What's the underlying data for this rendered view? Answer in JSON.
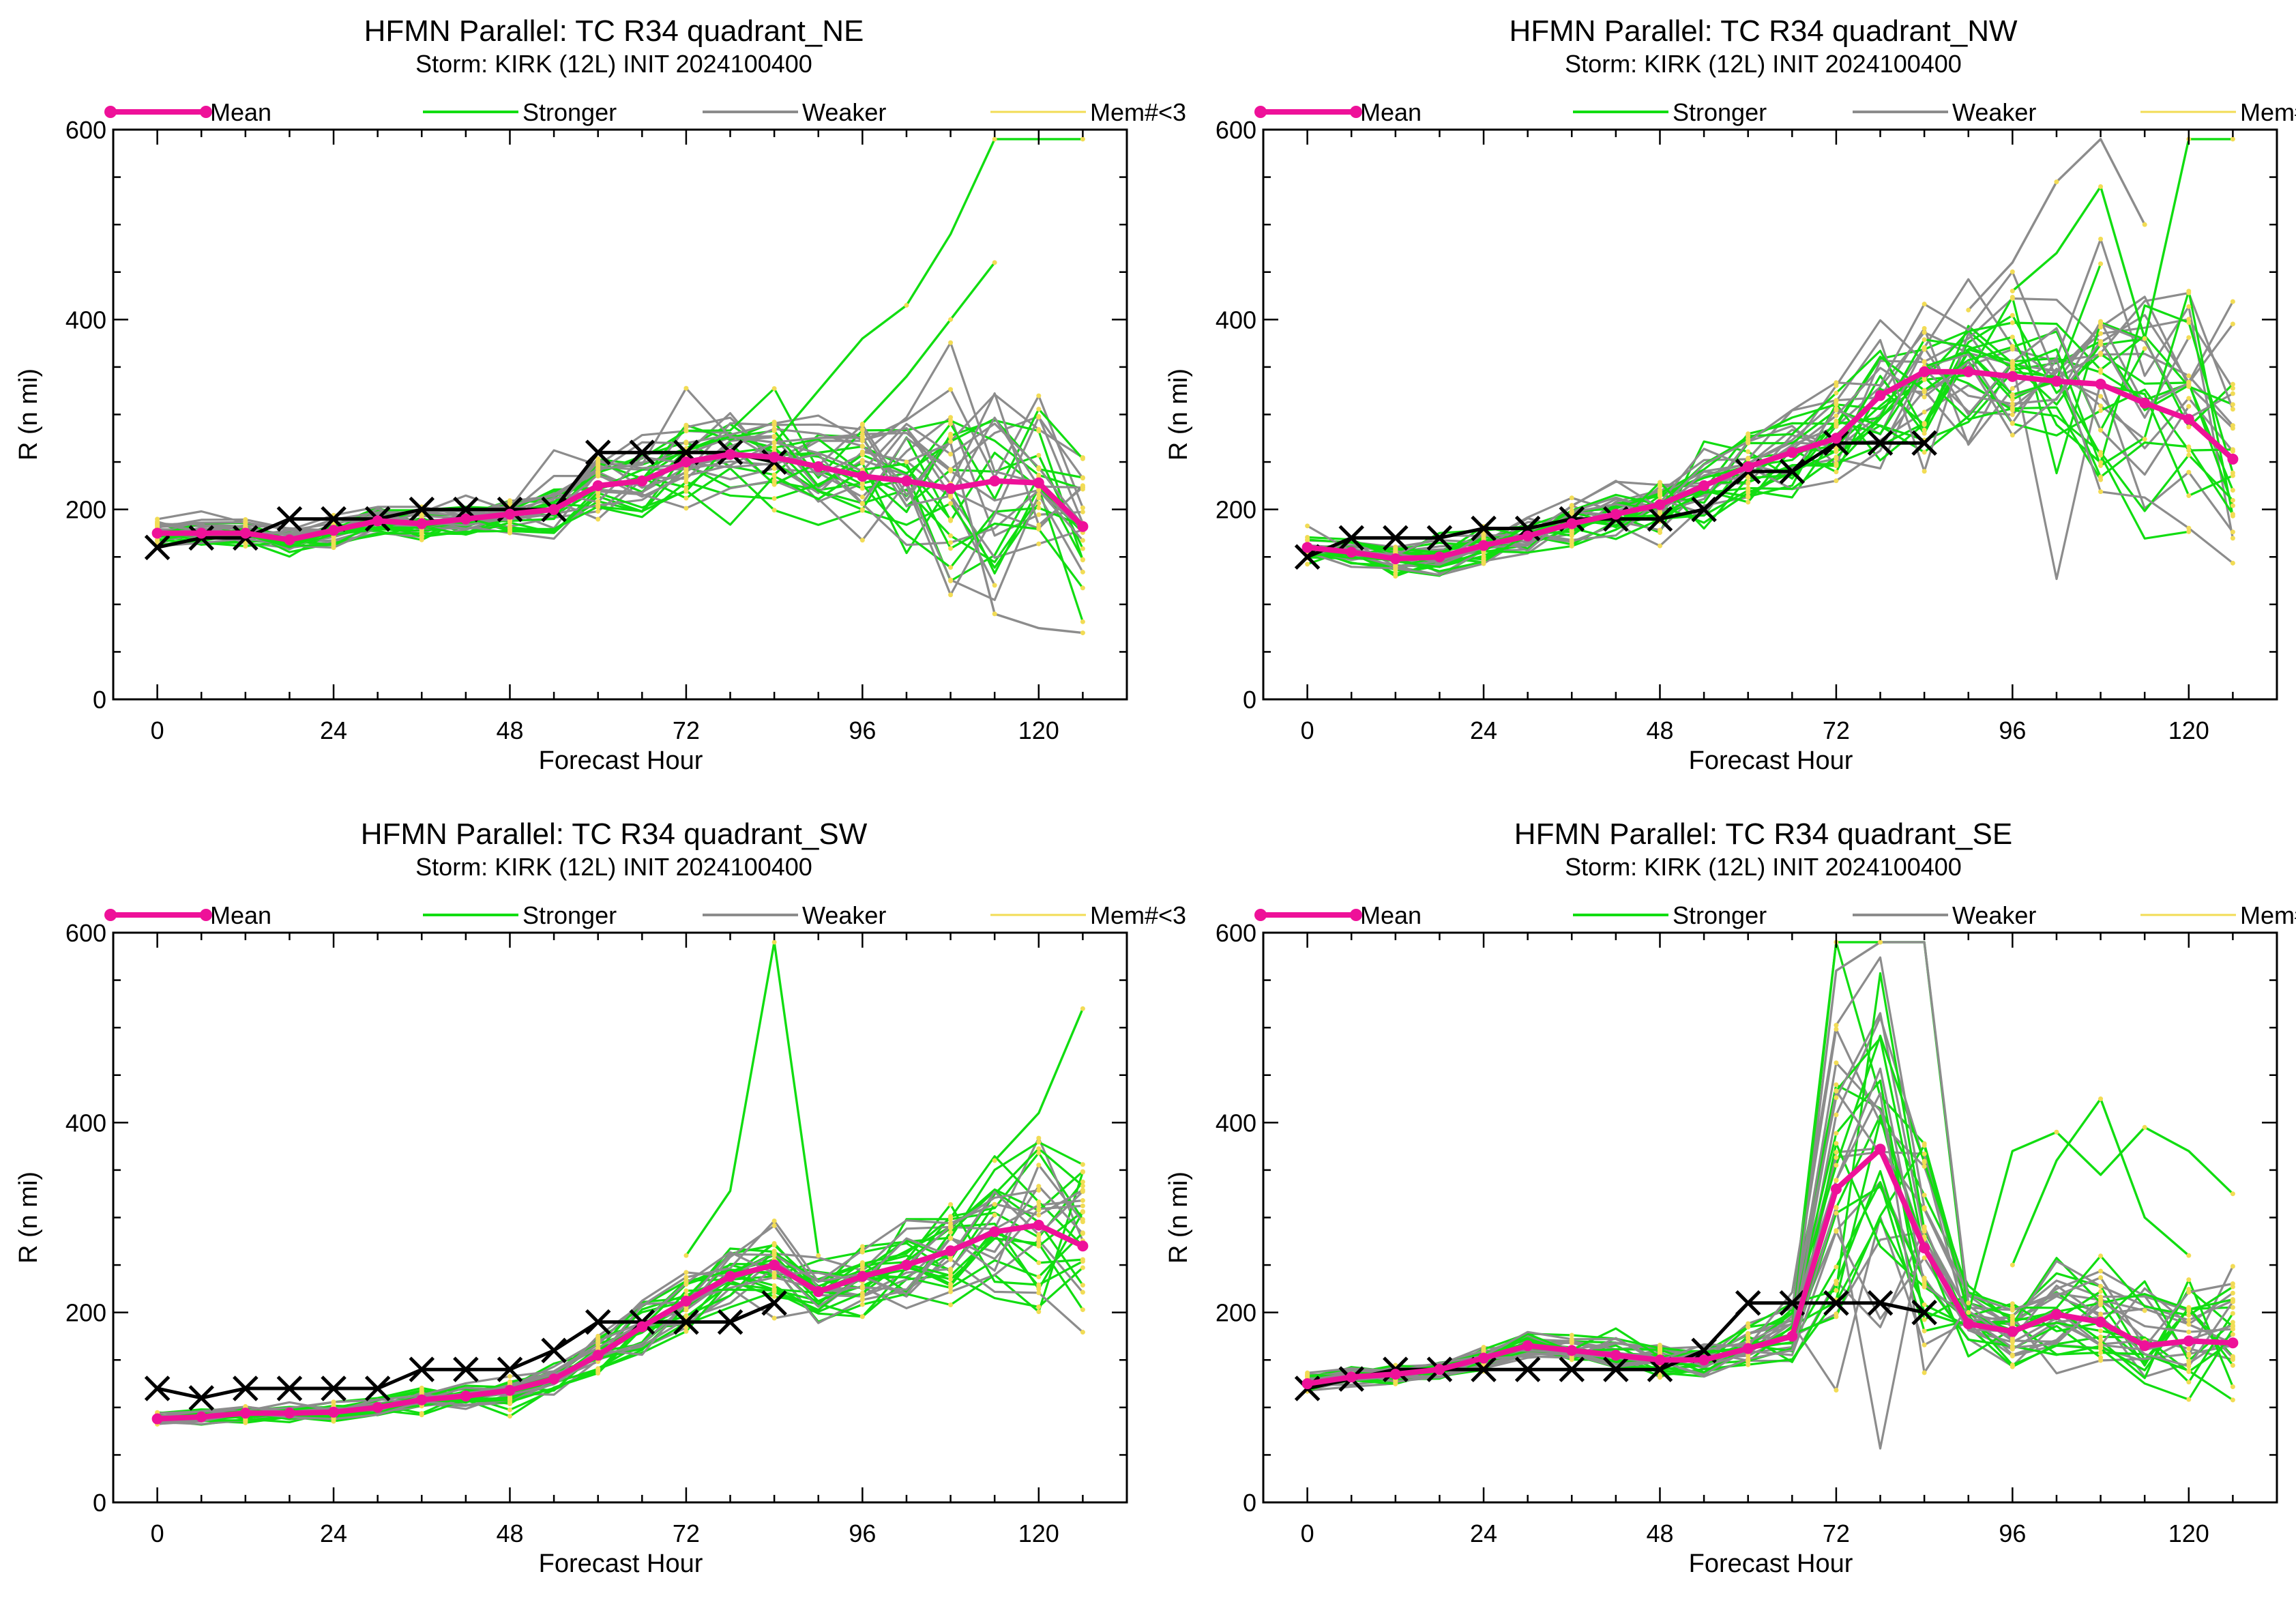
{
  "colors": {
    "mean": "#ee1199",
    "stronger": "#11dd11",
    "weaker": "#8c8c8c",
    "mem": "#f2dc55",
    "best_track": "#000000"
  },
  "legend": {
    "mean": "Mean",
    "stronger": "Stronger",
    "weaker": "Weaker",
    "mem": "Mem#<3"
  },
  "chart_data": [
    {
      "type": "line",
      "title": "HFMN Parallel: TC  R34 quadrant_NE",
      "subtitle": "Storm: KIRK (12L) INIT 2024100400",
      "xlabel": "Forecast Hour",
      "ylabel": "R (n mi)",
      "xlim": [
        -6,
        132
      ],
      "ylim": [
        0,
        600
      ],
      "xticks": [
        0,
        24,
        48,
        72,
        96,
        120
      ],
      "yticks": [
        0,
        200,
        400,
        600
      ],
      "grid": false,
      "legend_position": "top",
      "x": [
        0,
        6,
        12,
        18,
        24,
        30,
        36,
        42,
        48,
        54,
        60,
        66,
        72,
        78,
        84,
        90,
        96,
        102,
        108,
        114,
        120,
        126
      ],
      "mean": [
        175,
        175,
        175,
        168,
        178,
        188,
        185,
        190,
        195,
        200,
        225,
        230,
        250,
        258,
        255,
        245,
        235,
        230,
        222,
        230,
        228,
        182
      ],
      "best_track": {
        "x": [
          0,
          6,
          12,
          18,
          24,
          30,
          36,
          42,
          48,
          54,
          60,
          66,
          72,
          78,
          84
        ],
        "values": [
          160,
          170,
          170,
          190,
          190,
          190,
          200,
          200,
          200,
          200,
          260,
          260,
          260,
          260,
          250
        ]
      },
      "members": {
        "count": 30,
        "stronger_share": 0.55,
        "spread": [
          10,
          10,
          10,
          11,
          11,
          11,
          11,
          12,
          12,
          20,
          25,
          28,
          30,
          30,
          30,
          35,
          45,
          55,
          65,
          75,
          60,
          55
        ],
        "outlier_strength": 0.25,
        "cap": 590
      },
      "highlights": [
        {
          "x": [
            84,
            96,
            102,
            108,
            114,
            120,
            126
          ],
          "values": [
            270,
            380,
            415,
            490,
            590,
            590,
            590
          ],
          "kind": "stronger"
        },
        {
          "x": [
            96,
            102,
            108,
            114
          ],
          "values": [
            290,
            340,
            400,
            460
          ],
          "kind": "stronger"
        },
        {
          "x": [
            102,
            108,
            114,
            120,
            126
          ],
          "values": [
            250,
            270,
            90,
            75,
            70
          ],
          "kind": "weaker"
        }
      ]
    },
    {
      "type": "line",
      "title": "HFMN Parallel: TC  R34 quadrant_NW",
      "subtitle": "Storm: KIRK (12L) INIT 2024100400",
      "xlabel": "Forecast Hour",
      "ylabel": "R (n mi)",
      "xlim": [
        -6,
        132
      ],
      "ylim": [
        0,
        600
      ],
      "xticks": [
        0,
        24,
        48,
        72,
        96,
        120
      ],
      "yticks": [
        0,
        200,
        400,
        600
      ],
      "grid": false,
      "legend_position": "top",
      "x": [
        0,
        6,
        12,
        18,
        24,
        30,
        36,
        42,
        48,
        54,
        60,
        66,
        72,
        78,
        84,
        90,
        96,
        102,
        108,
        114,
        120,
        126
      ],
      "mean": [
        160,
        155,
        148,
        150,
        162,
        172,
        185,
        195,
        205,
        225,
        245,
        260,
        275,
        320,
        345,
        345,
        340,
        335,
        332,
        312,
        295,
        253
      ],
      "best_track": {
        "x": [
          0,
          6,
          12,
          18,
          24,
          30,
          36,
          42,
          48,
          54,
          60,
          66,
          72,
          78,
          84
        ],
        "values": [
          150,
          170,
          170,
          170,
          180,
          180,
          190,
          190,
          190,
          200,
          240,
          240,
          270,
          270,
          270
        ]
      },
      "members": {
        "count": 30,
        "stronger_share": 0.55,
        "spread": [
          14,
          14,
          14,
          15,
          15,
          16,
          18,
          20,
          22,
          26,
          30,
          34,
          40,
          50,
          58,
          62,
          66,
          72,
          78,
          80,
          85,
          80
        ],
        "outlier_strength": 0.3,
        "cap": 590
      },
      "highlights": [
        {
          "x": [
            96,
            102,
            108,
            114,
            120,
            126
          ],
          "values": [
            430,
            470,
            540,
            380,
            590,
            590
          ],
          "kind": "stronger"
        },
        {
          "x": [
            90,
            96,
            102,
            108,
            114
          ],
          "values": [
            410,
            460,
            545,
            590,
            500
          ],
          "kind": "weaker"
        }
      ]
    },
    {
      "type": "line",
      "title": "HFMN Parallel: TC  R34 quadrant_SW",
      "subtitle": "Storm: KIRK (12L) INIT 2024100400",
      "xlabel": "Forecast Hour",
      "ylabel": "R (n mi)",
      "xlim": [
        -6,
        132
      ],
      "ylim": [
        0,
        600
      ],
      "xticks": [
        0,
        24,
        48,
        72,
        96,
        120
      ],
      "yticks": [
        0,
        200,
        400,
        600
      ],
      "grid": false,
      "legend_position": "top",
      "x": [
        0,
        6,
        12,
        18,
        24,
        30,
        36,
        42,
        48,
        54,
        60,
        66,
        72,
        78,
        84,
        90,
        96,
        102,
        108,
        114,
        120,
        126
      ],
      "mean": [
        88,
        90,
        94,
        94,
        95,
        100,
        108,
        112,
        118,
        130,
        155,
        185,
        212,
        238,
        250,
        222,
        238,
        250,
        265,
        285,
        292,
        270
      ],
      "best_track": {
        "x": [
          0,
          6,
          12,
          18,
          24,
          30,
          36,
          42,
          48,
          54,
          60,
          66,
          72,
          78,
          84
        ],
        "values": [
          120,
          110,
          120,
          120,
          120,
          120,
          140,
          140,
          140,
          160,
          190,
          190,
          190,
          190,
          210
        ]
      },
      "members": {
        "count": 30,
        "stronger_share": 0.55,
        "spread": [
          5,
          5,
          6,
          6,
          7,
          7,
          8,
          9,
          10,
          12,
          15,
          18,
          20,
          22,
          25,
          25,
          28,
          32,
          38,
          45,
          55,
          60
        ],
        "outlier_strength": 0.2,
        "cap": 590
      },
      "highlights": [
        {
          "x": [
            72,
            78,
            84,
            90
          ],
          "values": [
            260,
            328,
            590,
            260
          ],
          "kind": "stronger"
        },
        {
          "x": [
            114,
            120,
            126
          ],
          "values": [
            360,
            410,
            520
          ],
          "kind": "stronger"
        }
      ]
    },
    {
      "type": "line",
      "title": "HFMN Parallel: TC  R34 quadrant_SE",
      "subtitle": "Storm: KIRK (12L) INIT 2024100400",
      "xlabel": "Forecast Hour",
      "ylabel": "R (n mi)",
      "xlim": [
        -6,
        132
      ],
      "ylim": [
        0,
        600
      ],
      "xticks": [
        0,
        24,
        48,
        72,
        96,
        120
      ],
      "yticks": [
        0,
        200,
        400,
        600
      ],
      "grid": false,
      "legend_position": "top",
      "x": [
        0,
        6,
        12,
        18,
        24,
        30,
        36,
        42,
        48,
        54,
        60,
        66,
        72,
        78,
        84,
        90,
        96,
        102,
        108,
        114,
        120,
        126
      ],
      "mean": [
        125,
        132,
        135,
        140,
        152,
        165,
        160,
        155,
        150,
        150,
        162,
        175,
        330,
        372,
        268,
        188,
        180,
        198,
        190,
        165,
        170,
        168
      ],
      "best_track": {
        "x": [
          0,
          6,
          12,
          18,
          24,
          30,
          36,
          42,
          48,
          54,
          60,
          66,
          72,
          78,
          84
        ],
        "values": [
          120,
          130,
          140,
          140,
          140,
          140,
          140,
          140,
          140,
          160,
          210,
          210,
          210,
          210,
          200
        ]
      },
      "members": {
        "count": 30,
        "stronger_share": 0.55,
        "spread": [
          7,
          7,
          8,
          9,
          10,
          12,
          12,
          12,
          12,
          14,
          16,
          25,
          110,
          120,
          90,
          25,
          30,
          35,
          40,
          42,
          45,
          48
        ],
        "outlier_strength": 0.2,
        "cap": 590
      },
      "highlights": [
        {
          "x": [
            66,
            72,
            78,
            84,
            90
          ],
          "values": [
            180,
            590,
            590,
            590,
            200
          ],
          "kind": "stronger"
        },
        {
          "x": [
            66,
            72,
            78,
            84,
            90
          ],
          "values": [
            175,
            560,
            590,
            590,
            210
          ],
          "kind": "weaker"
        },
        {
          "x": [
            90,
            96,
            102,
            108,
            114,
            120,
            126
          ],
          "values": [
            200,
            370,
            390,
            345,
            395,
            370,
            325
          ],
          "kind": "stronger"
        },
        {
          "x": [
            96,
            102,
            108,
            114,
            120
          ],
          "values": [
            250,
            360,
            425,
            300,
            260
          ],
          "kind": "stronger"
        }
      ]
    }
  ]
}
